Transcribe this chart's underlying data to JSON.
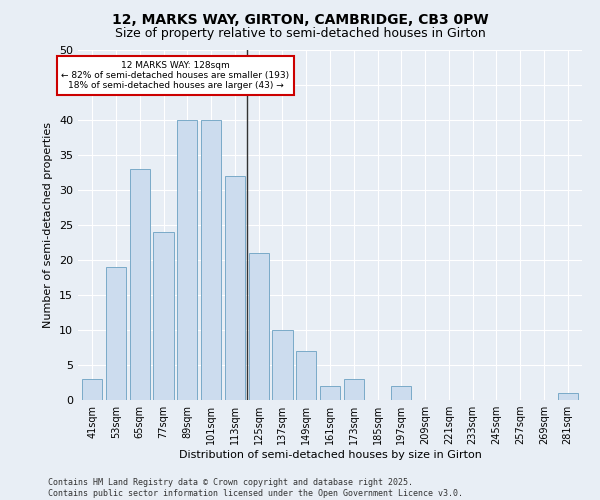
{
  "title1": "12, MARKS WAY, GIRTON, CAMBRIDGE, CB3 0PW",
  "title2": "Size of property relative to semi-detached houses in Girton",
  "xlabel": "Distribution of semi-detached houses by size in Girton",
  "ylabel": "Number of semi-detached properties",
  "categories": [
    "41sqm",
    "53sqm",
    "65sqm",
    "77sqm",
    "89sqm",
    "101sqm",
    "113sqm",
    "125sqm",
    "137sqm",
    "149sqm",
    "161sqm",
    "173sqm",
    "185sqm",
    "197sqm",
    "209sqm",
    "221sqm",
    "233sqm",
    "245sqm",
    "257sqm",
    "269sqm",
    "281sqm"
  ],
  "values": [
    3,
    19,
    33,
    24,
    40,
    40,
    32,
    21,
    10,
    7,
    2,
    3,
    0,
    2,
    0,
    0,
    0,
    0,
    0,
    0,
    1
  ],
  "bar_color": "#ccdcee",
  "bar_edge_color": "#7aaac8",
  "highlight_line_color": "#333333",
  "annotation_title": "12 MARKS WAY: 128sqm",
  "annotation_line1": "← 82% of semi-detached houses are smaller (193)",
  "annotation_line2": "18% of semi-detached houses are larger (43) →",
  "annotation_box_facecolor": "#ffffff",
  "annotation_box_edgecolor": "#cc0000",
  "ylim": [
    0,
    50
  ],
  "yticks": [
    0,
    5,
    10,
    15,
    20,
    25,
    30,
    35,
    40,
    45,
    50
  ],
  "footer1": "Contains HM Land Registry data © Crown copyright and database right 2025.",
  "footer2": "Contains public sector information licensed under the Open Government Licence v3.0.",
  "bg_color": "#e8eef5",
  "plot_bg_color": "#e8eef5",
  "grid_color": "#ffffff",
  "title1_fontsize": 10,
  "title2_fontsize": 9,
  "xlabel_fontsize": 8,
  "ylabel_fontsize": 8,
  "tick_fontsize": 7,
  "footer_fontsize": 6
}
